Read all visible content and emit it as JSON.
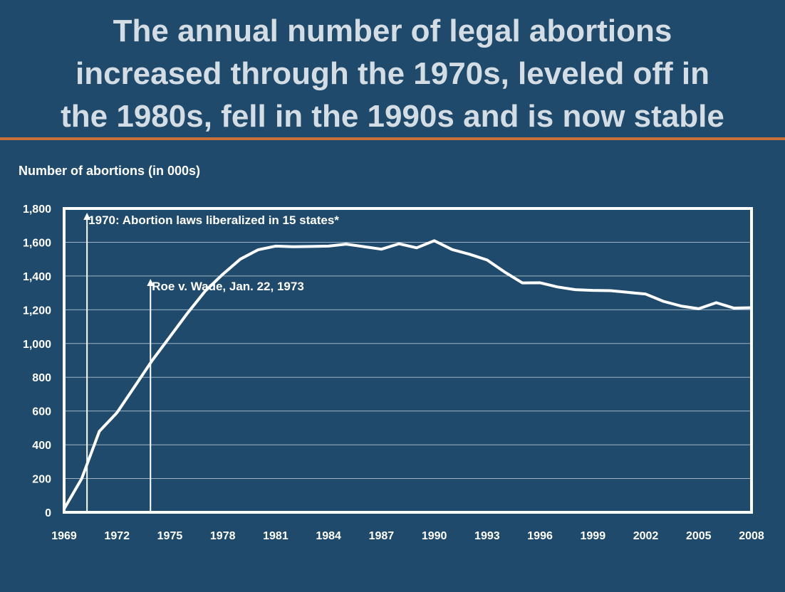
{
  "slide": {
    "title_lines": [
      "The annual number of legal abortions",
      "increased through the 1970s, leveled off in",
      "the 1980s, fell in the 1990s and is now stable"
    ],
    "colors": {
      "background": "#1f4a6b",
      "title": "#d5dde4",
      "rule": "#c8703a",
      "line": "#ffffff"
    }
  },
  "chart_data": {
    "type": "line",
    "title": "The annual number of legal abortions increased through the 1970s, leveled off in the 1980s, fell in the 1990s and is now stable",
    "xlabel": "",
    "ylabel": "Number of abortions (in 000s)",
    "xlim": [
      1969,
      2008
    ],
    "ylim": [
      0,
      1800
    ],
    "x_ticks": [
      "1969",
      "1972",
      "1975",
      "1978",
      "1981",
      "1984",
      "1987",
      "1990",
      "1993",
      "1996",
      "1999",
      "2002",
      "2005",
      "2008"
    ],
    "y_ticks": [
      "0",
      "200",
      "400",
      "600",
      "800",
      "1,000",
      "1,200",
      "1,400",
      "1,600",
      "1,800"
    ],
    "grid": "horizontal",
    "series": [
      {
        "x": [
          1969,
          1970,
          1971,
          1972,
          1973,
          1974,
          1975,
          1976,
          1977,
          1978,
          1979,
          1980,
          1981,
          1982,
          1983,
          1984,
          1985,
          1986,
          1987,
          1988,
          1989,
          1990,
          1991,
          1992,
          1993,
          1994,
          1995,
          1996,
          1997,
          1998,
          1999,
          2000,
          2001,
          2002,
          2003,
          2004,
          2005,
          2006,
          2007,
          2008
        ],
        "values": [
          20,
          200,
          480,
          590,
          745,
          900,
          1040,
          1180,
          1310,
          1410,
          1500,
          1555,
          1577,
          1573,
          1575,
          1577,
          1589,
          1574,
          1559,
          1591,
          1567,
          1609,
          1557,
          1529,
          1495,
          1423,
          1359,
          1360,
          1335,
          1319,
          1315,
          1313,
          1303,
          1293,
          1250,
          1222,
          1206,
          1242,
          1210,
          1212
        ]
      }
    ],
    "annotations": [
      {
        "text": "1970: Abortion laws liberalized in 15 states*",
        "x": 1970.3
      },
      {
        "text": "Roe v. Wade, Jan. 22, 1973",
        "x": 1973.9
      }
    ]
  }
}
